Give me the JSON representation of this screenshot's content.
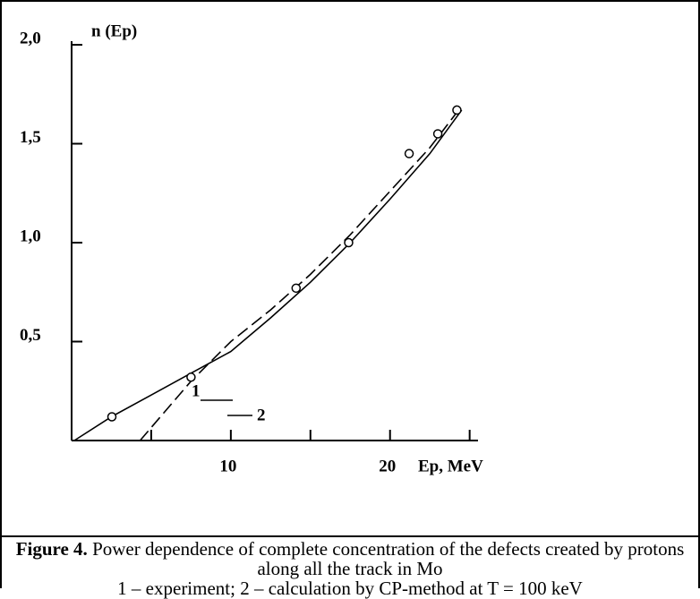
{
  "chart_data": {
    "type": "line",
    "ylabel": "n (Ep)",
    "xlabel": "Ep, MeV",
    "xlim": [
      0,
      25.3
    ],
    "ylim": [
      0,
      2.0
    ],
    "xticks": [
      10,
      20
    ],
    "xminor_ticks": [
      5,
      15,
      25
    ],
    "yticks": [
      {
        "value": 0.5,
        "label": "0,5"
      },
      {
        "value": 1.0,
        "label": "1,0"
      },
      {
        "value": 1.5,
        "label": "1,5"
      },
      {
        "value": 2.0,
        "label": "2,0"
      }
    ],
    "points": {
      "x": [
        2.53,
        7.5,
        14.1,
        17.4,
        21.2,
        23.0,
        24.2
      ],
      "values": [
        0.12,
        0.32,
        0.77,
        1.0,
        1.45,
        1.55,
        1.67
      ]
    },
    "series": [
      {
        "name": "1",
        "color": "#000000",
        "dash": false,
        "x": [
          0.17,
          2.5,
          5,
          7.5,
          10,
          12.5,
          15,
          17.5,
          20,
          22.5,
          24.5
        ],
        "values": [
          0,
          0.12,
          0.23,
          0.34,
          0.45,
          0.62,
          0.8,
          1.0,
          1.22,
          1.45,
          1.67
        ]
      },
      {
        "name": "2",
        "color": "#000000",
        "dash": true,
        "x": [
          4.3,
          7.5,
          10,
          12.5,
          15,
          17.5,
          20,
          22.5,
          24.4
        ],
        "values": [
          0,
          0.3,
          0.5,
          0.66,
          0.84,
          1.04,
          1.26,
          1.48,
          1.68
        ]
      }
    ]
  },
  "caption": {
    "label": "Figure 4.",
    "text": "Power dependence of complete concentration of the defects created by protons along all the track in Mo",
    "legend": "1 – experiment; 2 – calculation by CP-method at T = 100 keV"
  }
}
